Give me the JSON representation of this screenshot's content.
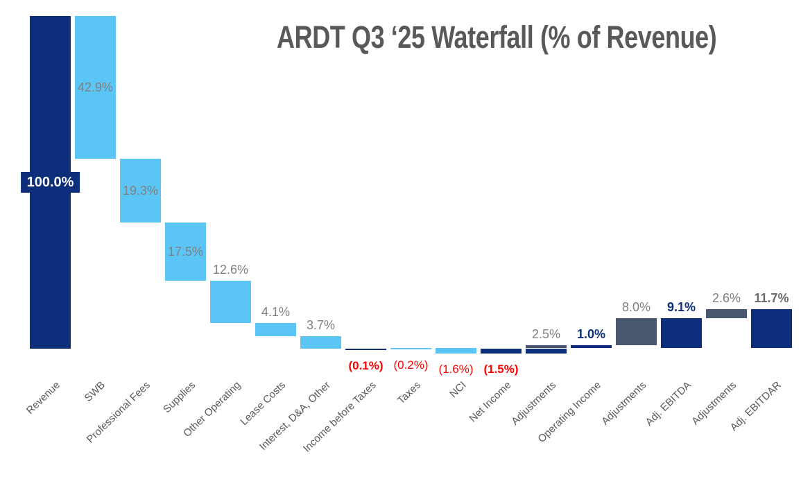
{
  "chart_data": {
    "type": "waterfall",
    "title": "ARDT Q3 ‘25 Waterfall (% of Revenue)",
    "xlabel": "",
    "ylabel": "",
    "ylim": [
      -2,
      100
    ],
    "grid": false,
    "legend": false,
    "x_label_rotation_deg": -44,
    "categories": [
      "Revenue",
      "SWB",
      "Professional Fees",
      "Supplies",
      "Other Operating",
      "Lease Costs",
      "Interest, D&A, Other",
      "Income before Taxes",
      "Taxes",
      "NCI",
      "Net Income",
      "Adjustments",
      "Operating Income",
      "Adjustments",
      "Adj. EBITDA",
      "Adjustments",
      "Adj. EBITDAR"
    ],
    "colors": {
      "navy": "#0d2e7b",
      "sky": "#5bc6f5",
      "slate": "#48576d",
      "label_gray": "#808080",
      "label_dark_gray": "#6b6b6b",
      "red": "#fe0000",
      "title_gray": "#595959",
      "background": "#ffffff",
      "box_text": "#ffffff"
    },
    "bars": [
      {
        "category": "Revenue",
        "label": "100.0%",
        "value": 100.0,
        "label_style": "box",
        "label_pos": "center",
        "segments": [
          {
            "from": 100.0,
            "to": 0.0,
            "color": "navy"
          }
        ]
      },
      {
        "category": "SWB",
        "label": "42.9%",
        "value": -42.9,
        "label_style": "gray",
        "label_pos": "inside",
        "segments": [
          {
            "from": 100.0,
            "to": 57.1,
            "color": "sky"
          }
        ]
      },
      {
        "category": "Professional Fees",
        "label": "19.3%",
        "value": -19.3,
        "label_style": "gray",
        "label_pos": "inside",
        "segments": [
          {
            "from": 57.1,
            "to": 37.8,
            "color": "sky"
          }
        ]
      },
      {
        "category": "Supplies",
        "label": "17.5%",
        "value": -17.5,
        "label_style": "gray",
        "label_pos": "inside",
        "segments": [
          {
            "from": 37.8,
            "to": 20.3,
            "color": "sky"
          }
        ]
      },
      {
        "category": "Other Operating",
        "label": "12.6%",
        "value": -12.6,
        "label_style": "gray",
        "label_pos": "above",
        "segments": [
          {
            "from": 20.3,
            "to": 7.7,
            "color": "sky"
          }
        ]
      },
      {
        "category": "Lease Costs",
        "label": "4.1%",
        "value": -4.1,
        "label_style": "gray",
        "label_pos": "above",
        "segments": [
          {
            "from": 7.7,
            "to": 3.6,
            "color": "sky"
          }
        ]
      },
      {
        "category": "Interest, D&A, Other",
        "label": "3.7%",
        "value": -3.7,
        "label_style": "gray",
        "label_pos": "above",
        "segments": [
          {
            "from": 3.6,
            "to": -0.1,
            "color": "sky"
          }
        ]
      },
      {
        "category": "Income before Taxes",
        "label": "(0.1%)",
        "value": -0.1,
        "label_style": "red-bold",
        "label_pos": "below",
        "segments": [
          {
            "from": 0.0,
            "to": -0.1,
            "color": "navy"
          }
        ]
      },
      {
        "category": "Taxes",
        "label": "(0.2%)",
        "value": 0.2,
        "label_style": "red",
        "label_pos": "below",
        "segments": [
          {
            "from": 0.1,
            "to": -0.1,
            "color": "sky"
          }
        ]
      },
      {
        "category": "NCI",
        "label": "(1.6%)",
        "value": -1.6,
        "label_style": "red",
        "label_pos": "below",
        "segments": [
          {
            "from": 0.1,
            "to": -1.5,
            "color": "sky"
          }
        ]
      },
      {
        "category": "Net Income",
        "label": "(1.5%)",
        "value": -1.5,
        "label_style": "red-bold",
        "label_pos": "below",
        "segments": [
          {
            "from": 0.0,
            "to": -1.5,
            "color": "navy"
          }
        ]
      },
      {
        "category": "Adjustments",
        "label": "2.5%",
        "value": 2.5,
        "label_style": "gray",
        "label_pos": "above",
        "segments": [
          {
            "from": 1.0,
            "to": 0.0,
            "color": "slate"
          },
          {
            "from": 0.0,
            "to": -1.5,
            "color": "navy"
          }
        ]
      },
      {
        "category": "Operating Income",
        "label": "1.0%",
        "value": 1.0,
        "label_style": "navy-bold",
        "label_pos": "above",
        "segments": [
          {
            "from": 1.0,
            "to": 0.0,
            "color": "navy"
          }
        ]
      },
      {
        "category": "Adjustments",
        "label": "8.0%",
        "value": 8.0,
        "label_style": "gray",
        "label_pos": "above",
        "segments": [
          {
            "from": 9.0,
            "to": 1.0,
            "color": "slate"
          }
        ]
      },
      {
        "category": "Adj. EBITDA",
        "label": "9.1%",
        "value": 9.1,
        "label_style": "navy-bold",
        "label_pos": "above",
        "segments": [
          {
            "from": 9.1,
            "to": 0.0,
            "color": "navy"
          }
        ]
      },
      {
        "category": "Adjustments",
        "label": "2.6%",
        "value": 2.6,
        "label_style": "gray",
        "label_pos": "above",
        "segments": [
          {
            "from": 11.7,
            "to": 9.1,
            "color": "slate"
          }
        ]
      },
      {
        "category": "Adj. EBITDAR",
        "label": "11.7%",
        "value": 11.7,
        "label_style": "gray-bold",
        "label_pos": "above",
        "segments": [
          {
            "from": 11.7,
            "to": 0.0,
            "color": "navy"
          }
        ]
      }
    ]
  }
}
